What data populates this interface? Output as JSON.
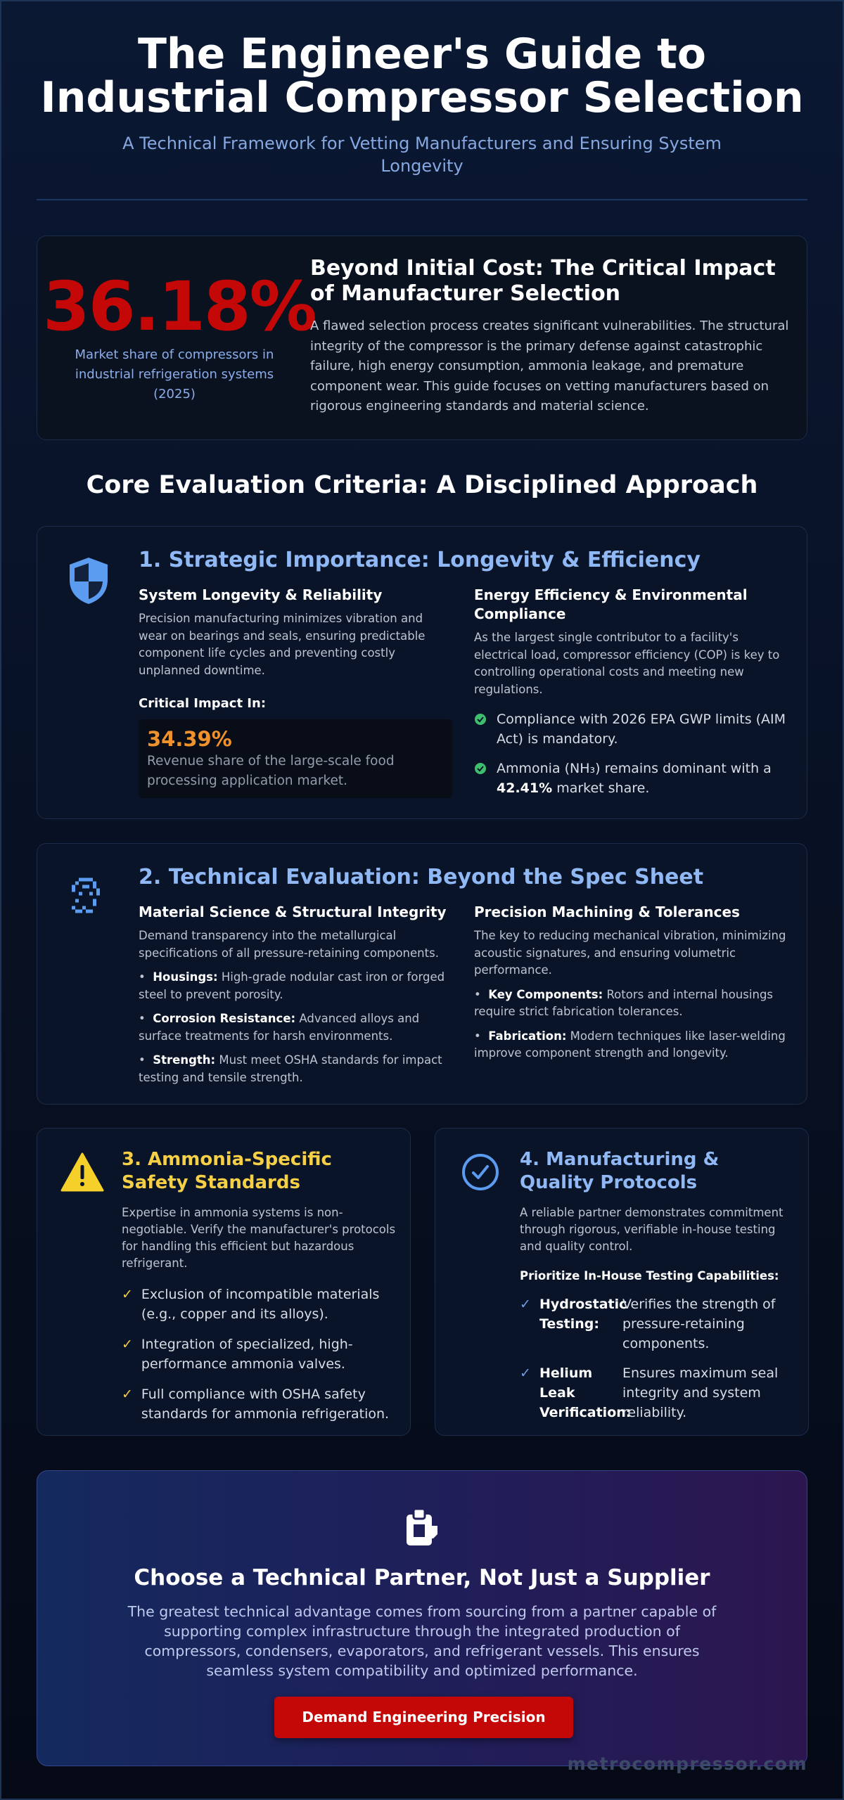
{
  "header": {
    "title": "The Engineer's Guide to Industrial Compressor Selection",
    "subtitle": "A Technical Framework for Vetting Manufacturers and Ensuring System Longevity"
  },
  "hero": {
    "stat": "36.18%",
    "stat_caption": "Market share of compressors in industrial refrigeration systems (2025)",
    "heading": "Beyond Initial Cost: The Critical Impact of Manufacturer Selection",
    "body": "A flawed selection process creates significant vulnerabilities. The structural integrity of the compressor is the primary defense against catastrophic failure, high energy consumption, ammonia leakage, and premature component wear. This guide focuses on vetting manufacturers based on rigorous engineering standards and material science."
  },
  "section_title": "Core Evaluation Criteria: A Disciplined Approach",
  "section1": {
    "heading": "1. Strategic Importance: Longevity & Efficiency",
    "left": {
      "heading": "System Longevity & Reliability",
      "body": "Precision manufacturing minimizes vibration and wear on bearings and seals, ensuring predictable component life cycles and preventing costly unplanned downtime.",
      "impact_label": "Critical Impact In:",
      "impact_value": "34.39%",
      "impact_text": "Revenue share of the large-scale food processing application market."
    },
    "right": {
      "heading": "Energy Efficiency & Environmental Compliance",
      "body": "As the largest single contributor to a facility's electrical load, compressor efficiency (COP) is key to controlling operational costs and meeting new regulations.",
      "item1": "Compliance with 2026 EPA GWP limits (AIM Act) is mandatory.",
      "item2_before": "Ammonia (NH₃) remains dominant with a",
      "item2_value": "42.41%",
      "item2_after": "market share."
    }
  },
  "section2": {
    "heading": "2. Technical Evaluation: Beyond the Spec Sheet",
    "left": {
      "heading": "Material Science & Structural Integrity",
      "body": "Demand transparency into the metallurgical specifications of all pressure-retaining components.",
      "bullets": [
        {
          "label": "Housings:",
          "text": "High-grade nodular cast iron or forged steel to prevent porosity."
        },
        {
          "label": "Corrosion Resistance:",
          "text": "Advanced alloys and surface treatments for harsh environments."
        },
        {
          "label": "Strength:",
          "text": "Must meet OSHA standards for impact testing and tensile strength."
        }
      ]
    },
    "right": {
      "heading": "Precision Machining & Tolerances",
      "body": "The key to reducing mechanical vibration, minimizing acoustic signatures, and ensuring volumetric performance.",
      "bullets": [
        {
          "label": "Key Components:",
          "text": "Rotors and internal housings require strict fabrication tolerances."
        },
        {
          "label": "Fabrication:",
          "text": "Modern techniques like laser-welding improve component strength and longevity."
        }
      ]
    }
  },
  "section3": {
    "heading": "3. Ammonia-Specific Safety Standards",
    "body": "Expertise in ammonia systems is non-negotiable. Verify the manufacturer's protocols for handling this efficient but hazardous refrigerant.",
    "items": [
      "Exclusion of incompatible materials (e.g., copper and its alloys).",
      "Integration of specialized, high-performance ammonia valves.",
      "Full compliance with OSHA safety standards for ammonia refrigeration."
    ]
  },
  "section4": {
    "heading": "4. Manufacturing & Quality Protocols",
    "body": "A reliable partner demonstrates commitment through rigorous, verifiable in-house testing and quality control.",
    "subheading": "Prioritize In-House Testing Capabilities:",
    "items": [
      {
        "label": "Hydrostatic Testing:",
        "text": "Verifies the strength of pressure-retaining components."
      },
      {
        "label": "Helium Leak Verification:",
        "text": "Ensures maximum seal integrity and system reliability."
      }
    ]
  },
  "cta": {
    "heading": "Choose a Technical Partner, Not Just a Supplier",
    "body": "The greatest technical advantage comes from sourcing from a partner capable of supporting complex infrastructure through the integrated production of compressors, condensers, evaporators, and refrigerant vessels. This ensures seamless system compatibility and optimized performance.",
    "button": "Demand Engineering Precision"
  },
  "footer": {
    "brand": "metrocompressor.com"
  }
}
